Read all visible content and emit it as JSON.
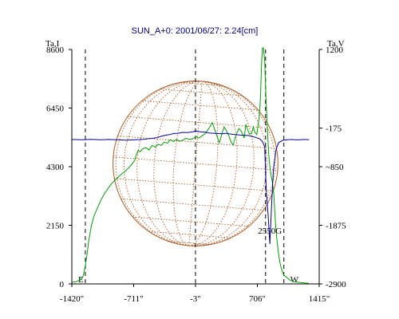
{
  "chart_data": {
    "type": "line",
    "title": "SUN_A+0: 2001/06/27: 2.24[cm]",
    "left_axis": {
      "label": "Ta,I",
      "ticks": [
        0,
        2150,
        4300,
        6450,
        8600
      ],
      "tick_labels": [
        "0",
        "2150",
        "4300",
        "6450",
        "8600"
      ],
      "range": [
        0,
        8600
      ]
    },
    "right_axis": {
      "label": "Ta,V",
      "ticks": [
        -2900,
        -1875,
        -850,
        -175,
        1200
      ],
      "tick_labels": [
        "-2900",
        "-1875",
        "~850",
        "-175",
        "1200"
      ],
      "range": [
        -2900,
        1200
      ]
    },
    "x_axis": {
      "ticks": [
        -1420,
        -711,
        -3,
        706,
        1415
      ],
      "tick_labels": [
        "-1420\"",
        "-711\"",
        "-3\"",
        "706\"",
        "1415\""
      ],
      "range": [
        -1420,
        1415
      ]
    },
    "markers": [
      {
        "x": -1265,
        "label": "E"
      },
      {
        "x": -3,
        "label": ""
      },
      {
        "x": 800,
        "label": ""
      },
      {
        "x": 1010,
        "label": "W"
      }
    ],
    "annotation": {
      "label": "2550G",
      "x": 850,
      "y": 1850
    },
    "solar_disk": {
      "center_x": -3,
      "radius_arcsec": 945
    },
    "series": [
      {
        "axis": "left",
        "color": "#00a000",
        "x": [
          -1420,
          -1370,
          -1320,
          -1290,
          -1265,
          -1245,
          -1225,
          -1195,
          -1165,
          -1125,
          -1085,
          -1045,
          -1005,
          -965,
          -925,
          -885,
          -845,
          -805,
          -770,
          -735,
          -700,
          -680,
          -660,
          -635,
          -605,
          -570,
          -535,
          -500,
          -465,
          -430,
          -395,
          -360,
          -325,
          -290,
          -255,
          -220,
          -185,
          -150,
          -110,
          -70,
          -35,
          0,
          35,
          70,
          110,
          150,
          190,
          230,
          270,
          300,
          325,
          355,
          380,
          405,
          430,
          460,
          495,
          525,
          555,
          575,
          595,
          615,
          640,
          660,
          680,
          700,
          715,
          725,
          735,
          745,
          755,
          765,
          775,
          790,
          805,
          820,
          835,
          850,
          865,
          880,
          895,
          905,
          915,
          925,
          935,
          945,
          955,
          965,
          975,
          985,
          995,
          1005,
          1020,
          1040,
          1060,
          1080,
          1100,
          1120,
          1145,
          1170,
          1200,
          1230,
          1260,
          1295
        ],
        "y": [
          60,
          80,
          160,
          280,
          660,
          1100,
          1600,
          2150,
          2500,
          2800,
          3080,
          3320,
          3500,
          3680,
          3800,
          3930,
          4040,
          4140,
          4250,
          4380,
          4530,
          4740,
          4900,
          4850,
          4960,
          5000,
          4910,
          5080,
          5020,
          5120,
          5080,
          5200,
          5160,
          5290,
          5220,
          5300,
          5230,
          5270,
          5340,
          5300,
          5320,
          5400,
          5350,
          5420,
          5520,
          5700,
          5920,
          5550,
          5180,
          5500,
          5760,
          5600,
          5420,
          5200,
          5100,
          5450,
          5700,
          5590,
          5350,
          5850,
          5660,
          5500,
          5520,
          5760,
          5550,
          5480,
          5850,
          6050,
          6400,
          7100,
          8100,
          9200,
          8700,
          8200,
          6800,
          5800,
          4800,
          4300,
          3950,
          3700,
          3300,
          2700,
          2200,
          1800,
          1500,
          1200,
          980,
          780,
          640,
          520,
          430,
          360,
          290,
          250,
          190,
          140,
          110,
          80,
          70,
          60,
          50,
          40,
          30,
          25
        ]
      },
      {
        "axis": "right",
        "color": "#0000a0",
        "x": [
          -1420,
          -1300,
          -1200,
          -1100,
          -1000,
          -900,
          -800,
          -700,
          -600,
          -550,
          -500,
          -450,
          -400,
          -350,
          -300,
          -250,
          -200,
          -150,
          -100,
          -50,
          0,
          50,
          100,
          150,
          200,
          250,
          300,
          350,
          400,
          450,
          500,
          550,
          600,
          650,
          700,
          730,
          760,
          790,
          800,
          810,
          830,
          850,
          870,
          890,
          920,
          950,
          1000,
          1050,
          1100,
          1150,
          1200,
          1250,
          1300
        ],
        "y": [
          -375,
          -378,
          -372,
          -380,
          -375,
          -378,
          -385,
          -380,
          -372,
          -362,
          -355,
          -345,
          -320,
          -300,
          -290,
          -270,
          -265,
          -250,
          -255,
          -245,
          -225,
          -240,
          -245,
          -260,
          -265,
          -270,
          -275,
          -265,
          -280,
          -290,
          -295,
          -300,
          -305,
          -320,
          -345,
          -360,
          -400,
          -500,
          -950,
          -1300,
          -1700,
          -2200,
          -1500,
          -900,
          -550,
          -430,
          -385,
          -380,
          -375,
          -382,
          -378,
          -375,
          -380
        ]
      }
    ]
  }
}
